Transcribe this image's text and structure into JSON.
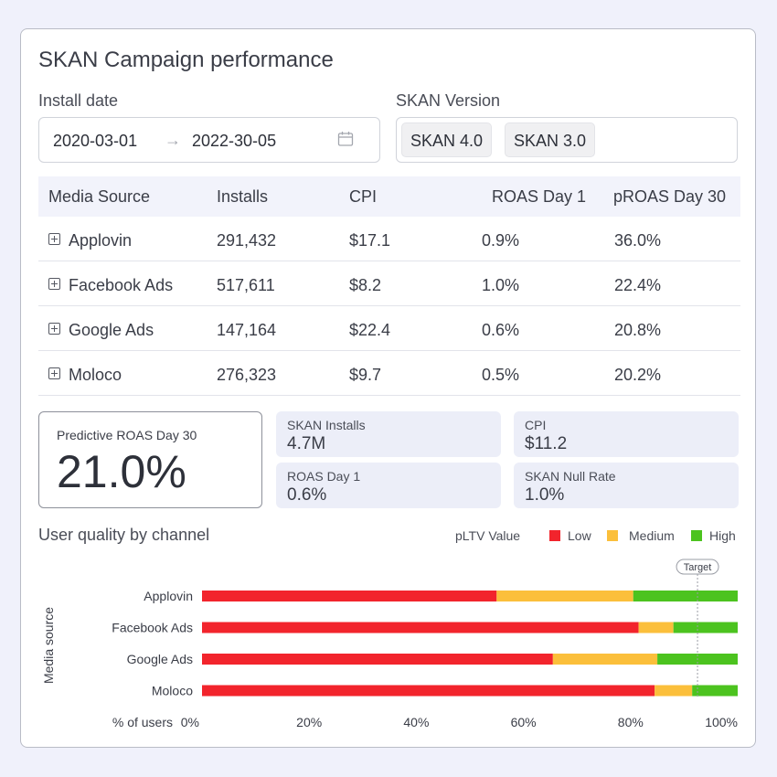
{
  "title": "SKAN Campaign performance",
  "install_date": {
    "label": "Install date",
    "start": "2020-03-01",
    "arrow": "→",
    "end": "2022-30-05",
    "icon": "calendar-icon"
  },
  "skan_version": {
    "label": "SKAN Version",
    "chips": [
      "SKAN 4.0",
      "SKAN 3.0"
    ]
  },
  "table": {
    "headers": [
      "Media Source",
      "Installs",
      "CPI",
      "ROAS Day 1",
      "pROAS Day 30"
    ],
    "rows": [
      [
        "Applovin",
        "291,432",
        "$17.1",
        "0.9%",
        "36.0%"
      ],
      [
        "Facebook Ads",
        "517,611",
        "$8.2",
        "1.0%",
        "22.4%"
      ],
      [
        "Google Ads",
        "147,164",
        "$22.4",
        "0.6%",
        "20.8%"
      ],
      [
        "Moloco",
        "276,323",
        "$9.7",
        "0.5%",
        "20.2%"
      ]
    ]
  },
  "kpis": {
    "predictive": {
      "label": "Predictive ROAS Day 30",
      "value": "21.0%"
    },
    "skan_installs": {
      "label": "SKAN Installs",
      "value": "4.7M"
    },
    "cpi": {
      "label": "CPI",
      "value": "$11.2"
    },
    "roas_day1": {
      "label": "ROAS Day 1",
      "value": "0.6%"
    },
    "null_rate": {
      "label": "SKAN Null Rate",
      "value": "1.0%"
    }
  },
  "chart_title": "User quality by channel",
  "legend": {
    "title": "pLTV Value",
    "items": [
      "Low",
      "Medium",
      "High"
    ]
  },
  "colors": {
    "low": "#f2242c",
    "medium": "#fbbf3b",
    "high": "#4cc31f",
    "accent_bg": "#eceef8"
  },
  "chart_data": {
    "type": "bar",
    "orientation": "horizontal",
    "stacked": true,
    "categories": [
      "Applovin",
      "Facebook Ads",
      "Google Ads",
      "Moloco"
    ],
    "series": [
      {
        "name": "Low",
        "values": [
          55,
          81.5,
          65.5,
          84.5
        ]
      },
      {
        "name": "Medium",
        "values": [
          25.5,
          6.5,
          19.5,
          7
        ]
      },
      {
        "name": "High",
        "values": [
          19.5,
          12,
          15,
          8.5
        ]
      }
    ],
    "xlabel": "% of users",
    "ylabel": "Media source",
    "xticks": [
      "0%",
      "20%",
      "40%",
      "60%",
      "80%",
      "100%"
    ],
    "xlim": [
      0,
      100
    ],
    "reference_line": {
      "label": "Target",
      "value": 92.5
    }
  }
}
